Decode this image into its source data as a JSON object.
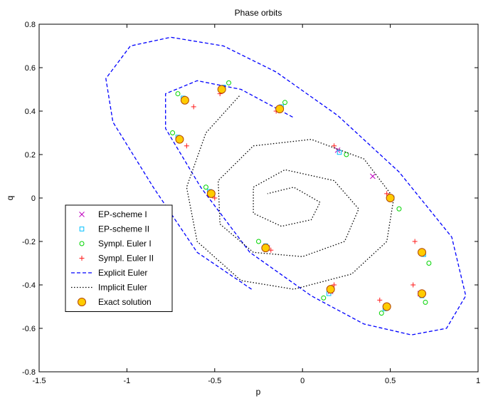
{
  "chart_data": {
    "type": "scatter",
    "title": "Phase orbits",
    "xlabel": "p",
    "ylabel": "q",
    "xlim": [
      -1.5,
      1.0
    ],
    "ylim": [
      -0.8,
      0.8
    ],
    "xticks": [
      -1.5,
      -1,
      -0.5,
      0,
      0.5,
      1
    ],
    "xtick_labels": [
      "-1.5",
      "-1",
      "-0.5",
      "0",
      "0.5",
      "1"
    ],
    "yticks": [
      -0.8,
      -0.6,
      -0.4,
      -0.2,
      0,
      0.2,
      0.4,
      0.6,
      0.8
    ],
    "ytick_labels": [
      "-0.8",
      "-0.6",
      "-0.4",
      "-0.2",
      "0",
      "0.2",
      "0.4",
      "0.6",
      "0.8"
    ],
    "grid": false,
    "legend_position": "left-middle",
    "series": [
      {
        "name": "EP-scheme I",
        "marker": "x",
        "color": "#bf00bf",
        "kind": "points",
        "points": [
          [
            0.5,
            0.0
          ],
          [
            0.68,
            -0.25
          ],
          [
            0.67,
            -0.44
          ],
          [
            0.48,
            -0.5
          ],
          [
            0.16,
            -0.43
          ],
          [
            -0.2,
            -0.23
          ],
          [
            -0.52,
            0.02
          ],
          [
            -0.7,
            0.27
          ],
          [
            -0.67,
            0.45
          ],
          [
            -0.46,
            0.5
          ],
          [
            -0.13,
            0.41
          ],
          [
            0.2,
            0.22
          ],
          [
            0.4,
            0.1
          ]
        ]
      },
      {
        "name": "EP-scheme II",
        "marker": "square",
        "color": "#00bfff",
        "kind": "points",
        "points": [
          [
            0.51,
            0.0
          ],
          [
            0.69,
            -0.26
          ],
          [
            0.68,
            -0.45
          ],
          [
            0.47,
            -0.51
          ],
          [
            0.15,
            -0.44
          ],
          [
            -0.21,
            -0.22
          ],
          [
            -0.53,
            0.03
          ],
          [
            -0.71,
            0.28
          ],
          [
            -0.68,
            0.46
          ],
          [
            -0.45,
            0.51
          ],
          [
            -0.12,
            0.42
          ],
          [
            0.21,
            0.21
          ]
        ]
      },
      {
        "name": "Sympl. Euler I",
        "marker": "circle",
        "color": "#00d400",
        "kind": "points",
        "points": [
          [
            0.55,
            -0.05
          ],
          [
            0.72,
            -0.3
          ],
          [
            0.7,
            -0.48
          ],
          [
            0.45,
            -0.53
          ],
          [
            0.12,
            -0.46
          ],
          [
            -0.25,
            -0.2
          ],
          [
            -0.55,
            0.05
          ],
          [
            -0.74,
            0.3
          ],
          [
            -0.71,
            0.48
          ],
          [
            -0.42,
            0.53
          ],
          [
            -0.1,
            0.44
          ],
          [
            0.25,
            0.2
          ]
        ]
      },
      {
        "name": "Sympl. Euler II",
        "marker": "plus",
        "color": "#ff1a1a",
        "kind": "points",
        "points": [
          [
            0.48,
            0.02
          ],
          [
            0.64,
            -0.2
          ],
          [
            0.63,
            -0.4
          ],
          [
            0.44,
            -0.47
          ],
          [
            0.18,
            -0.4
          ],
          [
            -0.18,
            -0.24
          ],
          [
            -0.5,
            0.0
          ],
          [
            -0.66,
            0.24
          ],
          [
            -0.62,
            0.42
          ],
          [
            -0.47,
            0.48
          ],
          [
            -0.15,
            0.4
          ],
          [
            0.18,
            0.24
          ]
        ]
      },
      {
        "name": "Explicit Euler",
        "line": "dashed",
        "color": "#0000ff",
        "kind": "curve",
        "points": [
          [
            -0.29,
            -0.42
          ],
          [
            -0.6,
            -0.25
          ],
          [
            -0.85,
            0.05
          ],
          [
            -1.08,
            0.35
          ],
          [
            -1.12,
            0.55
          ],
          [
            -0.98,
            0.7
          ],
          [
            -0.75,
            0.74
          ],
          [
            -0.45,
            0.7
          ],
          [
            -0.15,
            0.58
          ],
          [
            0.2,
            0.38
          ],
          [
            0.55,
            0.12
          ],
          [
            0.85,
            -0.18
          ],
          [
            0.93,
            -0.45
          ],
          [
            0.82,
            -0.6
          ],
          [
            0.62,
            -0.63
          ],
          [
            0.35,
            -0.58
          ],
          [
            0.05,
            -0.45
          ],
          [
            -0.3,
            -0.25
          ],
          [
            -0.58,
            0.05
          ],
          [
            -0.78,
            0.32
          ],
          [
            -0.78,
            0.48
          ],
          [
            -0.6,
            0.54
          ],
          [
            -0.35,
            0.5
          ],
          [
            -0.05,
            0.37
          ]
        ]
      },
      {
        "name": "Implicit Euler",
        "line": "dotted",
        "color": "#000000",
        "kind": "curve",
        "points": [
          [
            -0.36,
            0.47
          ],
          [
            -0.55,
            0.3
          ],
          [
            -0.66,
            0.05
          ],
          [
            -0.6,
            -0.2
          ],
          [
            -0.35,
            -0.38
          ],
          [
            -0.05,
            -0.42
          ],
          [
            0.28,
            -0.35
          ],
          [
            0.48,
            -0.2
          ],
          [
            0.52,
            0.0
          ],
          [
            0.35,
            0.18
          ],
          [
            0.05,
            0.27
          ],
          [
            -0.28,
            0.24
          ],
          [
            -0.48,
            0.08
          ],
          [
            -0.47,
            -0.12
          ],
          [
            -0.28,
            -0.25
          ],
          [
            0.0,
            -0.27
          ],
          [
            0.24,
            -0.2
          ],
          [
            0.32,
            -0.05
          ],
          [
            0.18,
            0.08
          ],
          [
            -0.1,
            0.13
          ],
          [
            -0.28,
            0.05
          ],
          [
            -0.28,
            -0.07
          ],
          [
            -0.12,
            -0.13
          ],
          [
            0.05,
            -0.1
          ],
          [
            0.1,
            -0.02
          ],
          [
            -0.05,
            0.05
          ],
          [
            -0.2,
            0.02
          ]
        ]
      },
      {
        "name": "Exact solution",
        "marker": "circle-filled",
        "color": "#ffcc00",
        "edge": "#b34700",
        "kind": "points",
        "points": [
          [
            -0.46,
            0.5
          ],
          [
            -0.67,
            0.45
          ],
          [
            -0.7,
            0.27
          ],
          [
            -0.52,
            0.02
          ],
          [
            -0.21,
            -0.23
          ],
          [
            0.16,
            -0.42
          ],
          [
            0.48,
            -0.5
          ],
          [
            0.68,
            -0.44
          ],
          [
            0.68,
            -0.25
          ],
          [
            0.5,
            0.0
          ],
          [
            -0.13,
            0.41
          ]
        ]
      }
    ]
  }
}
